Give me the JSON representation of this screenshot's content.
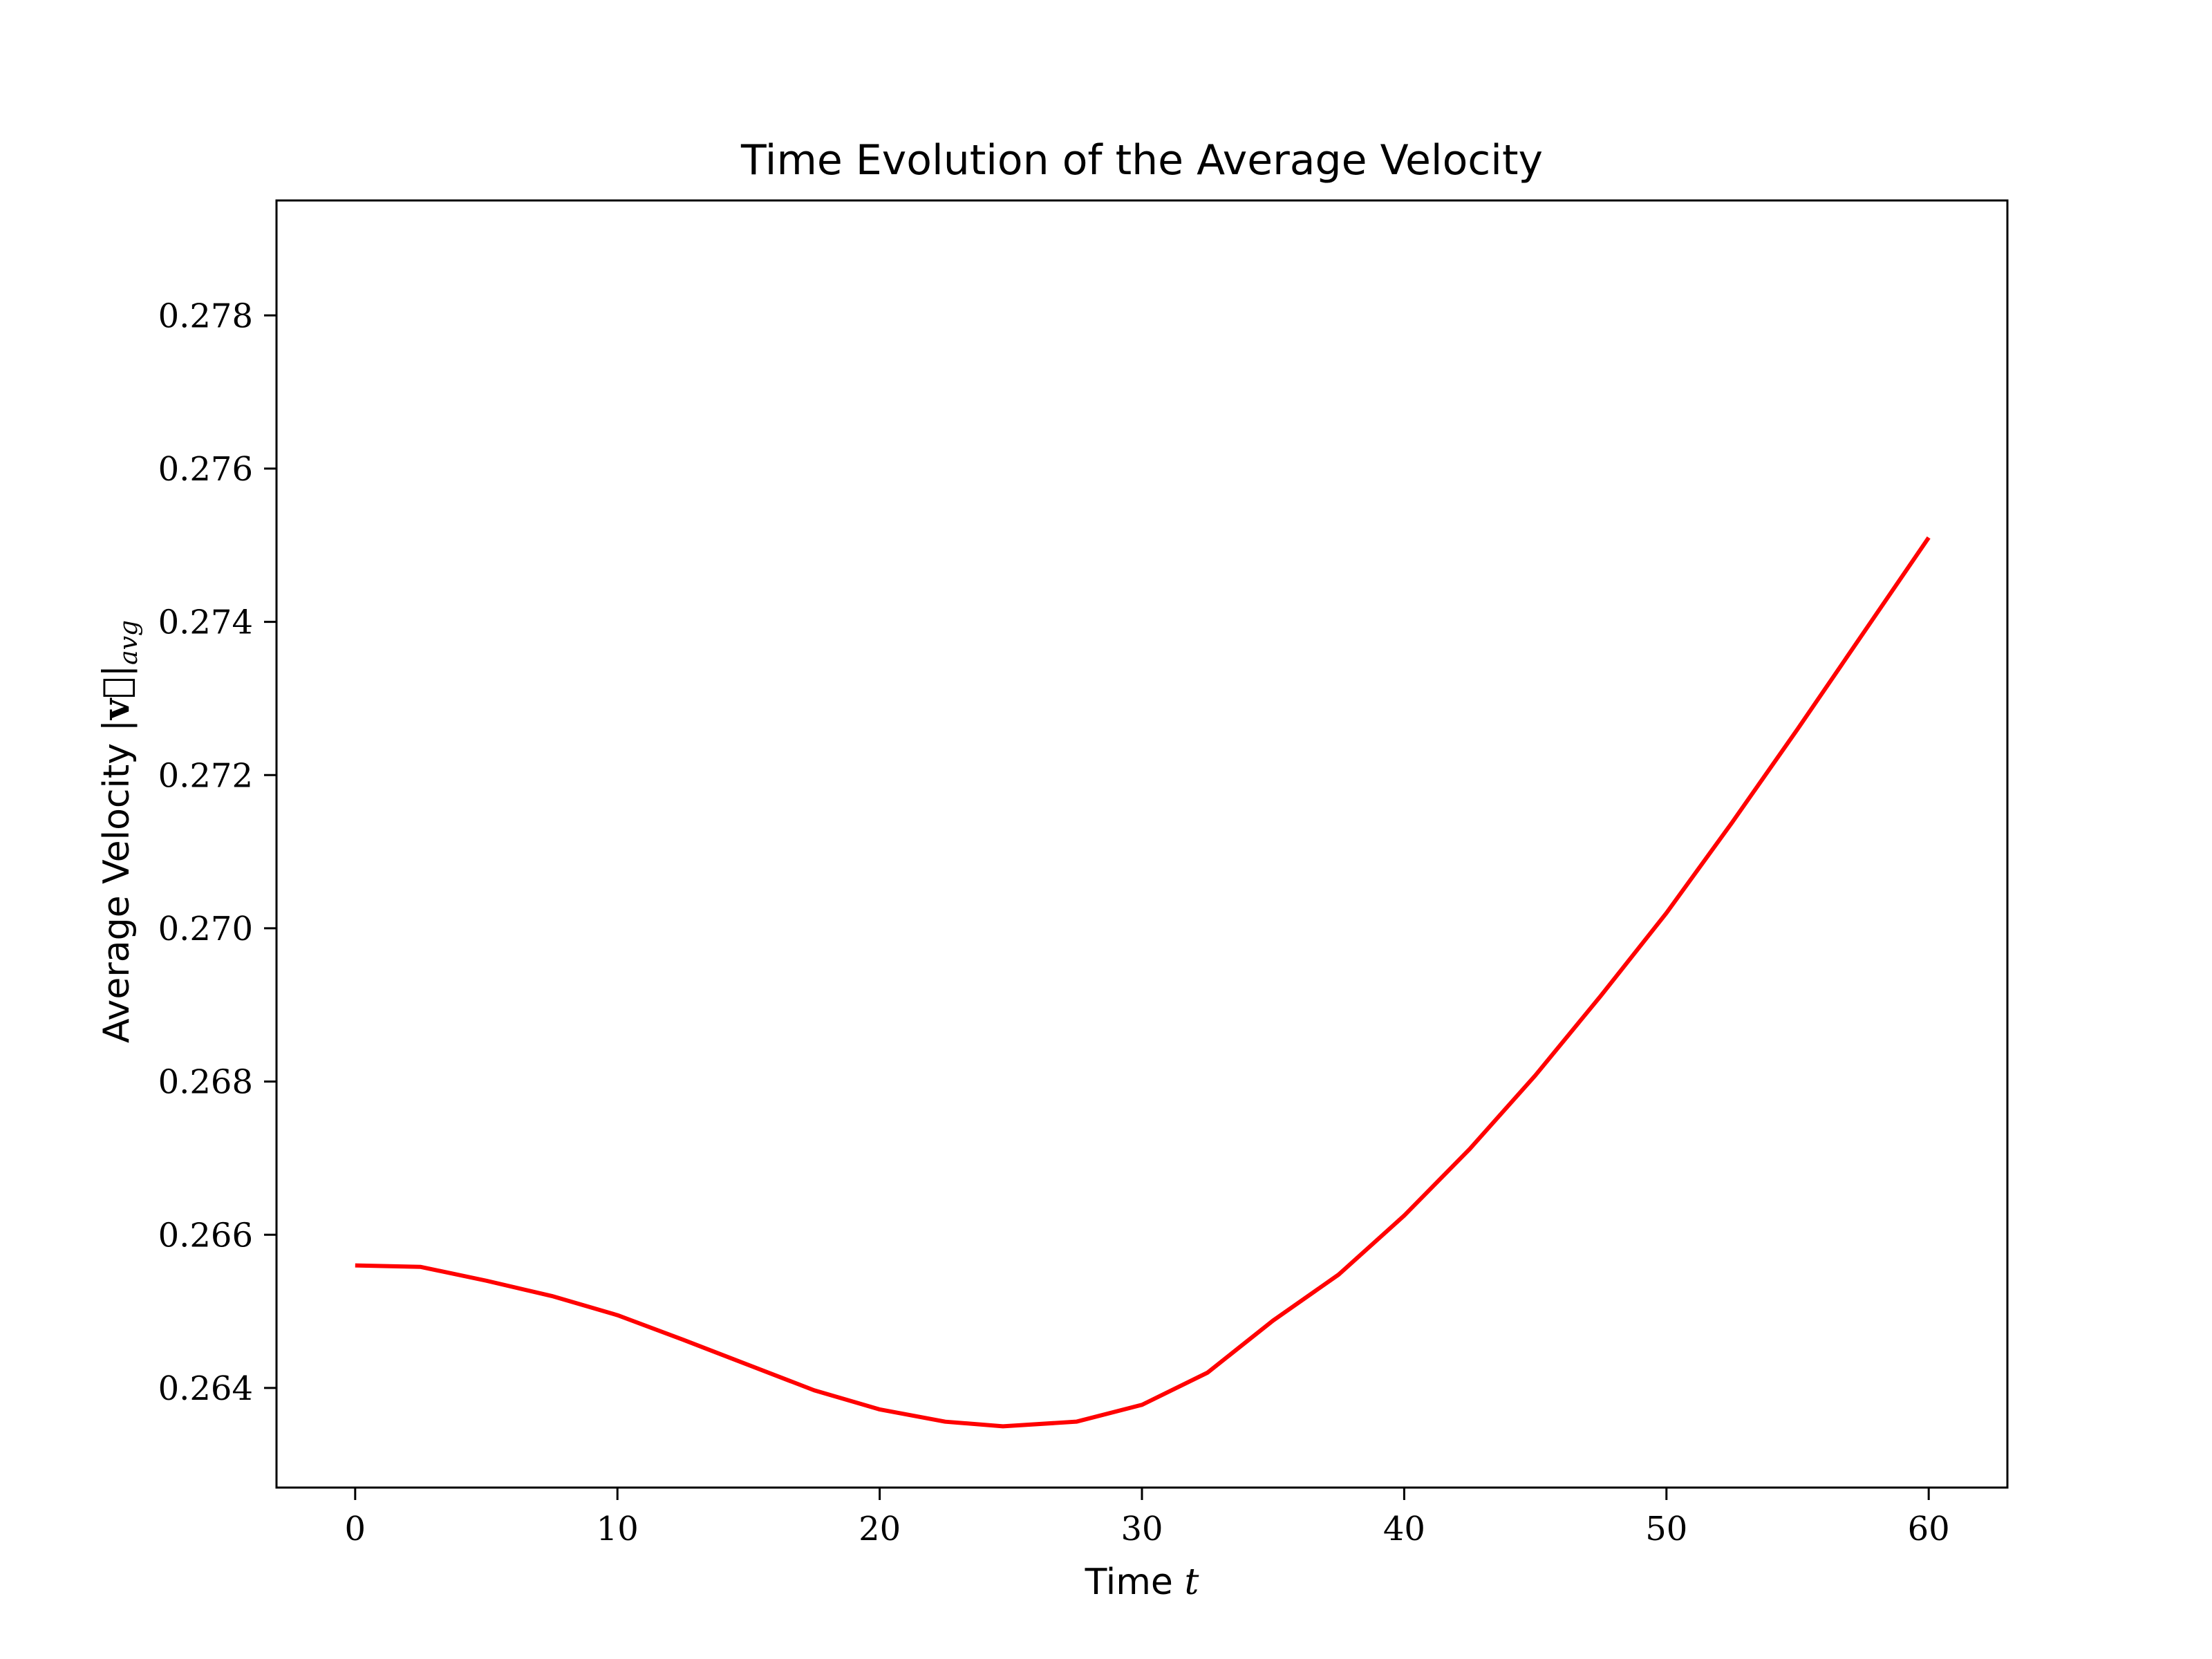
{
  "chart_data": {
    "type": "line",
    "title": "Time Evolution of the Average Velocity",
    "xlabel": {
      "text": "Time ",
      "math": "t"
    },
    "ylabel": {
      "text": "Average Velocity ",
      "bar_left": "|",
      "vector_symbol": "v⃗",
      "bar_right": "|",
      "subscript": "avg"
    },
    "xlim": [
      -3,
      63
    ],
    "ylim": [
      0.2627,
      0.2795
    ],
    "xticks": [
      0,
      10,
      20,
      30,
      40,
      50,
      60
    ],
    "xtick_labels": [
      "0",
      "10",
      "20",
      "30",
      "40",
      "50",
      "60"
    ],
    "yticks": [
      0.264,
      0.266,
      0.268,
      0.27,
      0.272,
      0.274,
      0.276,
      0.278
    ],
    "ytick_labels": [
      "0.264",
      "0.266",
      "0.268",
      "0.270",
      "0.272",
      "0.274",
      "0.276",
      "0.278"
    ],
    "grid": false,
    "series": [
      {
        "color": "#ff0000",
        "x": [
          0,
          2.5,
          5,
          7.5,
          10,
          12.5,
          15,
          17.5,
          20,
          22.5,
          24.7,
          27.5,
          30,
          32.5,
          35,
          37.5,
          40,
          42.5,
          45,
          47.5,
          50,
          52.5,
          55,
          57.5,
          60
        ],
        "y": [
          0.2656,
          0.26558,
          0.2654,
          0.2652,
          0.26495,
          0.26463,
          0.2643,
          0.26397,
          0.26372,
          0.26356,
          0.2635,
          0.26356,
          0.26378,
          0.2642,
          0.26488,
          0.26548,
          0.26625,
          0.26712,
          0.26808,
          0.26912,
          0.2702,
          0.27138,
          0.2726,
          0.27385,
          0.2751
        ]
      }
    ]
  }
}
